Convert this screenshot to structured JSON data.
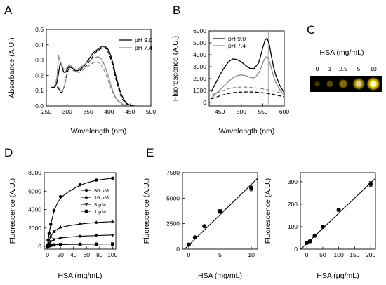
{
  "panels": {
    "a": "A",
    "b": "B",
    "c": "C",
    "d": "D",
    "e": "E"
  },
  "chart_data": [
    {
      "panel": "A",
      "type": "line",
      "xlabel": "Wavelength (nm)",
      "ylabel": "Absorbance (A.U.)",
      "xlim": [
        250,
        500
      ],
      "ylim": [
        0,
        0.5
      ],
      "xticks": [
        250,
        300,
        350,
        400,
        450,
        500
      ],
      "yticks": [
        0.0,
        0.1,
        0.2,
        0.3,
        0.4,
        0.5
      ],
      "legend": "top-right",
      "series": [
        {
          "name": "pH 9.0",
          "color": "#000000",
          "style": "solid",
          "x": [
            262,
            268,
            272,
            276,
            280,
            283,
            286,
            289,
            292,
            296,
            300,
            305,
            310,
            315,
            320,
            325,
            330,
            335,
            340,
            345,
            350,
            355,
            360,
            365,
            370,
            375,
            380,
            385,
            390,
            395,
            400,
            405,
            410,
            415,
            420,
            425,
            430,
            440,
            450,
            460
          ],
          "y": [
            0.12,
            0.12,
            0.13,
            0.16,
            0.23,
            0.28,
            0.27,
            0.24,
            0.22,
            0.22,
            0.24,
            0.26,
            0.25,
            0.24,
            0.23,
            0.23,
            0.24,
            0.25,
            0.26,
            0.28,
            0.3,
            0.32,
            0.34,
            0.355,
            0.365,
            0.375,
            0.385,
            0.39,
            0.39,
            0.38,
            0.36,
            0.32,
            0.27,
            0.21,
            0.16,
            0.11,
            0.07,
            0.02,
            0.005,
            0.0
          ]
        },
        {
          "name": "pH 9.0",
          "color": "#000000",
          "style": "dashed",
          "x": [
            262,
            268,
            272,
            276,
            280,
            284,
            288,
            292,
            296,
            300,
            305,
            310,
            315,
            320,
            325,
            330,
            335,
            340,
            345,
            350,
            355,
            360,
            365,
            370,
            375,
            380,
            385,
            390,
            395,
            400,
            405,
            410,
            415,
            420,
            425,
            430,
            440,
            450,
            460
          ],
          "y": [
            0.12,
            0.12,
            0.12,
            0.12,
            0.11,
            0.09,
            0.09,
            0.12,
            0.17,
            0.22,
            0.25,
            0.25,
            0.24,
            0.23,
            0.23,
            0.23,
            0.24,
            0.25,
            0.26,
            0.28,
            0.3,
            0.32,
            0.34,
            0.355,
            0.365,
            0.375,
            0.38,
            0.38,
            0.37,
            0.34,
            0.3,
            0.25,
            0.19,
            0.14,
            0.09,
            0.05,
            0.015,
            0.003,
            0.0
          ]
        },
        {
          "name": "pH 7.4",
          "color": "#8c8c8c",
          "style": "solid",
          "x": [
            262,
            268,
            272,
            276,
            279,
            282,
            285,
            288,
            292,
            296,
            300,
            305,
            310,
            315,
            320,
            325,
            330,
            335,
            340,
            345,
            350,
            355,
            360,
            365,
            370,
            375,
            380,
            385,
            390,
            395,
            400,
            405,
            410,
            415,
            420,
            430,
            440,
            450
          ],
          "y": [
            0.13,
            0.13,
            0.14,
            0.2,
            0.33,
            0.3,
            0.28,
            0.26,
            0.24,
            0.24,
            0.25,
            0.27,
            0.26,
            0.25,
            0.24,
            0.24,
            0.25,
            0.26,
            0.27,
            0.28,
            0.29,
            0.3,
            0.31,
            0.315,
            0.32,
            0.32,
            0.31,
            0.29,
            0.26,
            0.22,
            0.18,
            0.13,
            0.09,
            0.06,
            0.04,
            0.015,
            0.004,
            0.0
          ]
        },
        {
          "name": "pH 7.4",
          "color": "#8c8c8c",
          "style": "dashed",
          "x": [
            262,
            268,
            272,
            276,
            280,
            284,
            288,
            292,
            296,
            300,
            305,
            310,
            315,
            320,
            325,
            330,
            335,
            340,
            345,
            350,
            355,
            360,
            365,
            370,
            375,
            380,
            385,
            390,
            395,
            400,
            405,
            410,
            415,
            420,
            430,
            440,
            450
          ],
          "y": [
            0.13,
            0.13,
            0.13,
            0.13,
            0.12,
            0.1,
            0.1,
            0.12,
            0.16,
            0.21,
            0.24,
            0.24,
            0.23,
            0.22,
            0.22,
            0.22,
            0.23,
            0.24,
            0.25,
            0.26,
            0.27,
            0.28,
            0.285,
            0.29,
            0.285,
            0.27,
            0.25,
            0.22,
            0.19,
            0.15,
            0.11,
            0.08,
            0.055,
            0.035,
            0.012,
            0.003,
            0.0
          ]
        }
      ]
    },
    {
      "panel": "B",
      "type": "line",
      "xlabel": "Wavelength (nm)",
      "ylabel": "Fluorescence (A.U.)",
      "xlim": [
        425,
        600
      ],
      "ylim": [
        -300,
        6000
      ],
      "xticks": [
        450,
        500,
        550,
        600
      ],
      "yticks": [
        0,
        1000,
        2000,
        3000,
        4000,
        5000,
        6000
      ],
      "vline_x": 563,
      "legend": "top-left",
      "series": [
        {
          "name": "pH 9.0",
          "color": "#000000",
          "style": "solid",
          "x": [
            430,
            440,
            450,
            460,
            470,
            480,
            490,
            500,
            510,
            520,
            530,
            540,
            545,
            550,
            555,
            560,
            565,
            570,
            575,
            580,
            590,
            600
          ],
          "y": [
            900,
            1600,
            2300,
            2900,
            3400,
            3650,
            3600,
            3400,
            3100,
            2850,
            2850,
            3300,
            3900,
            4600,
            5200,
            5400,
            4900,
            3900,
            3000,
            2300,
            1400,
            800
          ]
        },
        {
          "name": "pH 7.4",
          "color": "#8c8c8c",
          "style": "solid",
          "x": [
            430,
            440,
            450,
            460,
            470,
            480,
            490,
            500,
            510,
            520,
            530,
            540,
            545,
            550,
            555,
            560,
            565,
            570,
            575,
            580,
            590,
            600
          ],
          "y": [
            350,
            700,
            1050,
            1400,
            1750,
            2050,
            2250,
            2300,
            2250,
            2100,
            2050,
            2400,
            2800,
            3300,
            3750,
            3850,
            3500,
            2850,
            2200,
            1700,
            1050,
            600
          ]
        },
        {
          "name": "pH 9.0",
          "color": "#000000",
          "style": "dashed",
          "x": [
            430,
            450,
            470,
            490,
            510,
            530,
            550,
            570,
            590,
            600
          ],
          "y": [
            300,
            550,
            750,
            850,
            880,
            870,
            800,
            700,
            550,
            480
          ]
        },
        {
          "name": "pH 7.4",
          "color": "#8c8c8c",
          "style": "dashed",
          "x": [
            430,
            450,
            470,
            490,
            510,
            530,
            550,
            570,
            590,
            600
          ],
          "y": [
            600,
            900,
            1150,
            1280,
            1280,
            1230,
            1130,
            1000,
            820,
            720
          ]
        }
      ]
    },
    {
      "panel": "C",
      "type": "other",
      "title": "HSA (mg/mL)",
      "categories": [
        "0",
        "1",
        "2.5",
        "5",
        "10"
      ],
      "values": [
        0.05,
        0.2,
        0.45,
        0.8,
        1.0
      ]
    },
    {
      "panel": "D",
      "type": "line",
      "xlabel": "HSA (mg/mL)",
      "ylabel": "Fluorescence (A.U.)",
      "xlim": [
        -5,
        105
      ],
      "ylim": [
        -300,
        8000
      ],
      "xticks": [
        0,
        20,
        40,
        60,
        80,
        100
      ],
      "yticks": [
        0,
        2000,
        4000,
        6000,
        8000
      ],
      "legend": "right",
      "series": [
        {
          "name": "30 μM",
          "marker": "circle",
          "x": [
            0,
            1,
            2.5,
            5,
            10,
            20,
            50,
            75,
            100
          ],
          "y": [
            100,
            700,
            1400,
            2400,
            3900,
            5400,
            6700,
            7200,
            7400
          ]
        },
        {
          "name": "10 μM",
          "marker": "triangle-up",
          "x": [
            0,
            1,
            2.5,
            5,
            10,
            20,
            50,
            75,
            100
          ],
          "y": [
            50,
            300,
            650,
            1100,
            1600,
            2100,
            2450,
            2600,
            2700
          ]
        },
        {
          "name": "3 μM",
          "marker": "triangle-down",
          "x": [
            0,
            1,
            2.5,
            5,
            10,
            20,
            50,
            75,
            100
          ],
          "y": [
            30,
            150,
            300,
            520,
            750,
            930,
            1100,
            1180,
            1230
          ]
        },
        {
          "name": "1 μM",
          "marker": "square",
          "x": [
            0,
            1,
            2.5,
            5,
            10,
            20,
            50,
            75,
            100
          ],
          "y": [
            10,
            40,
            80,
            130,
            170,
            200,
            230,
            245,
            260
          ]
        }
      ]
    },
    {
      "panel": "E-left",
      "type": "scatter",
      "xlabel": "HSA (mg/mL)",
      "ylabel": "Fluorescence (A.U.)",
      "xlim": [
        -1,
        11
      ],
      "ylim": [
        0,
        7500
      ],
      "xticks": [
        0,
        5,
        10
      ],
      "yticks": [
        0,
        2500,
        5000,
        7500
      ],
      "fit_line": {
        "x": [
          -1,
          11
        ],
        "y": [
          -200,
          6950
        ]
      },
      "series": [
        {
          "x": [
            0,
            1,
            2.5,
            5,
            10
          ],
          "y": [
            450,
            1150,
            2250,
            3700,
            6000
          ],
          "err": [
            60,
            80,
            100,
            180,
            280
          ]
        }
      ]
    },
    {
      "panel": "E-right",
      "type": "scatter",
      "xlabel": "HSA (μg/mL)",
      "ylabel": "Fluorescence (A.U.)",
      "xlim": [
        -20,
        215
      ],
      "ylim": [
        0,
        340
      ],
      "xticks": [
        0,
        50,
        100,
        150,
        200
      ],
      "yticks": [
        0,
        100,
        200,
        300
      ],
      "fit_line": {
        "x": [
          -20,
          215
        ],
        "y": [
          -2,
          315
        ]
      },
      "series": [
        {
          "x": [
            0,
            10,
            25,
            50,
            100,
            200
          ],
          "y": [
            28,
            35,
            60,
            100,
            175,
            290
          ],
          "err": [
            3,
            4,
            4,
            5,
            7,
            10
          ]
        }
      ]
    }
  ]
}
